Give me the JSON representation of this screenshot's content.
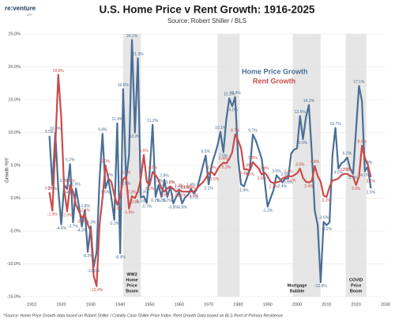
{
  "chart_data": {
    "type": "line",
    "logo": "re:venture",
    "logo_sub": "APP",
    "title": "U.S. Home Price v Rent Growth: 1916-2025",
    "subtitle": "Source: Robert Shiller / BLS",
    "ylabel": "Growth YoY",
    "footnote": "*Source: Home Price Growth data based on Robert Shiller / Cotality Case Shiller Price Index; Rent Growth Data based on BLS Rent of Primary Residence",
    "xlim": [
      1907,
      2030
    ],
    "xticks": [
      1910,
      1920,
      1930,
      1940,
      1950,
      1960,
      1970,
      1980,
      1990,
      2000,
      2010,
      2020,
      2030
    ],
    "ylim": [
      -15,
      25
    ],
    "yticks": [
      {
        "value": -15,
        "label": "-15.0%"
      },
      {
        "value": -10,
        "label": "-10.0%"
      },
      {
        "value": -5,
        "label": "-5.0%"
      },
      {
        "value": 0,
        "label": "0.0%"
      },
      {
        "value": 5,
        "label": "5.0%"
      },
      {
        "value": 10,
        "label": "10.0%"
      },
      {
        "value": 15,
        "label": "15.0%"
      },
      {
        "value": 20,
        "label": "20.0%"
      },
      {
        "value": 25,
        "label": "25.0%"
      }
    ],
    "grid": true,
    "shaded_periods": [
      {
        "start": 1941,
        "end": 1947,
        "label": [
          "WW2",
          "Home",
          "Price",
          "Boom"
        ]
      },
      {
        "start": 1973,
        "end": 1980.5
      },
      {
        "start": 1998.5,
        "end": 2008
      },
      {
        "start": 2016.5,
        "end": 2023.5,
        "label": [
          "COVID",
          "Price",
          "Boom"
        ]
      },
      {
        "start": 2000,
        "end": 2000,
        "label": [
          "Mortgage",
          "Bubble"
        ]
      }
    ],
    "x": [
      1916,
      1917,
      1918,
      1919,
      1920,
      1921,
      1922,
      1923,
      1924,
      1925,
      1926,
      1927,
      1928,
      1929,
      1930,
      1931,
      1932,
      1933,
      1934,
      1935,
      1936,
      1937,
      1938,
      1939,
      1940,
      1941,
      1942,
      1943,
      1944,
      1945,
      1946,
      1947,
      1948,
      1949,
      1950,
      1951,
      1952,
      1953,
      1954,
      1955,
      1956,
      1957,
      1958,
      1959,
      1960,
      1961,
      1962,
      1963,
      1964,
      1965,
      1966,
      1967,
      1968,
      1969,
      1970,
      1971,
      1972,
      1973,
      1974,
      1975,
      1976,
      1977,
      1978,
      1979,
      1980,
      1981,
      1982,
      1983,
      1984,
      1985,
      1986,
      1987,
      1988,
      1989,
      1990,
      1991,
      1992,
      1993,
      1994,
      1995,
      1996,
      1997,
      1998,
      1999,
      2000,
      2001,
      2002,
      2003,
      2004,
      2005,
      2006,
      2007,
      2008,
      2009,
      2010,
      2011,
      2012,
      2013,
      2014,
      2015,
      2016,
      2017,
      2018,
      2019,
      2020,
      2021,
      2022,
      2023,
      2024,
      2025
    ],
    "series": [
      {
        "name": "Home Price Growth",
        "color": "#4a6f95",
        "values": [
          9.5,
          2.0,
          10.0,
          1.4,
          -4.0,
          2.0,
          1.4,
          5.2,
          -3.7,
          1.5,
          -1.2,
          -4.3,
          -1.8,
          -8.2,
          -4.3,
          -10.5,
          -8.2,
          2.9,
          9.8,
          1.5,
          2.9,
          0.1,
          -3.3,
          11.4,
          -8.4,
          16.6,
          2.8,
          6.6,
          24.1,
          10.0,
          21.3,
          0.1,
          0.3,
          -0.7,
          4.0,
          11.2,
          0.2,
          2.0,
          0.2,
          2.8,
          0.2,
          1.8,
          -0.8,
          0.2,
          1.0,
          -0.8,
          0.1,
          0.5,
          1.4,
          0.7,
          1.4,
          3.0,
          4.8,
          6.5,
          2.1,
          5.0,
          6.5,
          8.0,
          10.1,
          7.0,
          12.0,
          15.2,
          14.0,
          15.4,
          6.0,
          2.1,
          1.8,
          3.1,
          4.5,
          9.7,
          8.8,
          7.4,
          6.0,
          2.6,
          -1.3,
          0.0,
          1.2,
          3.5,
          3.0,
          2.4,
          3.0,
          3.0,
          6.8,
          7.4,
          7.6,
          12.5,
          9.0,
          12.3,
          14.2,
          6.8,
          -1.9,
          -4.1,
          -12.8,
          -3.6,
          -4.1,
          -3.7,
          6.5,
          10.7,
          4.5,
          5.3,
          5.6,
          6.2,
          4.5,
          3.7,
          10.4,
          17.1,
          14.8,
          4.1,
          4.8,
          1.5
        ],
        "value_labels": [
          "9.5%",
          "2.0%",
          "10.0%",
          "1.4%",
          "-4.0%",
          "2.0%",
          "1.4%",
          "5.2%",
          "-3.7%",
          "1.5%",
          "-1.2%",
          "-4.3%",
          "-1.8%",
          "-8.2%",
          "-4.3%",
          "-10.5%",
          "-8.2%",
          "2.9%",
          "9.8%",
          "1.5%",
          "2.9%",
          "0.1%",
          "-3.3%",
          "11.4%",
          "-8.4%",
          "16.6%",
          "2.8%",
          "6.6%",
          "24.1%",
          "10.0%",
          "21.3%",
          "0.1%",
          "0.3%",
          "-0.7%",
          "4.0%",
          "11.2%",
          "0.2%",
          "2.0%",
          "0.2%",
          "2.8%",
          "0.2%",
          "1.8%",
          "-0.8%",
          "0.2%",
          "1.0%",
          "-0.8%",
          "0.1%",
          "0.5%",
          "1.4%",
          "0.7%",
          "1.4%",
          "3.0%",
          "4.8%",
          "6.5%",
          "2.1%",
          "5.0%",
          "6.5%",
          "8.0%",
          "10.1%",
          "7.0%",
          "12.0%",
          "15.2%",
          "14.0%",
          "15.4%",
          "6.0%",
          "2.1%",
          "1.8%",
          "3.1%",
          "4.5%",
          "9.7%",
          "8.8%",
          "7.4%",
          "6.0%",
          "2.6%",
          "-1.3%",
          "0.0%",
          "1.2%",
          "3.5%",
          "3.0%",
          "2.4%",
          "3.0%",
          "3.0%",
          "6.8%",
          "7.4%",
          "7.6%",
          "12.5%",
          "9.0%",
          "12.3%",
          "14.2%",
          "6.8%",
          "-1.9%",
          "-4.1%",
          "-12.8%",
          "-3.6%",
          "-4.1%",
          "-3.7%",
          "6.5%",
          "10.7%",
          "4.5%",
          "5.3%",
          "5.6%",
          "6.2%",
          "4.5%",
          "3.7%",
          "10.4%",
          "17.1%",
          "14.8%",
          "4.1%",
          "4.8%",
          "1.5%"
        ]
      },
      {
        "name": "Rent Growth",
        "color": "#cc4b4b",
        "values": [
          0.9,
          -1.9,
          8.0,
          18.8,
          12.3,
          1.4,
          -2.0,
          2.0,
          1.0,
          -1.0,
          -2.0,
          -3.0,
          -2.5,
          -4.0,
          -5.0,
          -11.8,
          -13.4,
          -4.0,
          0.0,
          5.0,
          3.0,
          2.5,
          0.5,
          -1.0,
          0.3,
          2.9,
          3.3,
          -1.6,
          0.3,
          0.0,
          1.0,
          3.0,
          6.6,
          2.5,
          2.0,
          4.0,
          3.5,
          2.8,
          1.5,
          1.0,
          1.5,
          1.8,
          1.4,
          1.0,
          1.3,
          1.0,
          1.0,
          1.0,
          1.0,
          1.0,
          1.5,
          2.0,
          2.4,
          3.0,
          3.8,
          4.0,
          3.5,
          4.4,
          5.0,
          5.4,
          5.3,
          6.0,
          7.0,
          9.7,
          8.8,
          7.6,
          4.4,
          4.4,
          4.2,
          5.5,
          5.0,
          4.5,
          3.6,
          3.9,
          3.3,
          2.5,
          2.3,
          2.4,
          2.5,
          3.0,
          3.2,
          3.4,
          3.3,
          3.5,
          3.8,
          4.5,
          3.1,
          2.5,
          2.4,
          2.6,
          4.9,
          3.4,
          2.5,
          0.4,
          0.2,
          1.7,
          2.7,
          2.8,
          3.0,
          3.5,
          3.7,
          3.7,
          3.4,
          3.3,
          2.0,
          3.3,
          8.0,
          6.1,
          5.1,
          3.2
        ],
        "value_labels": [
          "0.9%",
          "-1.9%",
          "8.0%",
          "18.8%",
          "12.3%",
          "1.4%",
          "-2.0%",
          "2.0%",
          "1.0%",
          "-1.0%",
          "-2.0%",
          "-3.0%",
          "-2.5%",
          "-4.0%",
          "-5.0%",
          "-11.8%",
          "-13.4%",
          "-4.0%",
          "0.0%",
          "5.0%",
          "3.0%",
          "2.5%",
          "0.5%",
          "-1.0%",
          "0.3%",
          "2.9%",
          "3.3%",
          "-1.6%",
          "0.3%",
          "0.0%",
          "1.0%",
          "3.0%",
          "6.6%",
          "2.5%",
          "2.0%",
          "4.0%",
          "3.5%",
          "2.8%",
          "1.5%",
          "1.0%",
          "1.5%",
          "1.8%",
          "1.4%",
          "1.0%",
          "1.3%",
          "1.0%",
          "1.0%",
          "1.0%",
          "1.0%",
          "1.0%",
          "1.5%",
          "2.0%",
          "2.4%",
          "3.0%",
          "3.8%",
          "4.0%",
          "3.5%",
          "4.4%",
          "5.0%",
          "5.4%",
          "5.3%",
          "6.0%",
          "7.0%",
          "9.7%",
          "8.8%",
          "7.6%",
          "4.4%",
          "4.4%",
          "4.2%",
          "5.5%",
          "5.0%",
          "4.5%",
          "3.6%",
          "3.9%",
          "3.3%",
          "2.5%",
          "2.3%",
          "2.4%",
          "2.5%",
          "3.0%",
          "3.2%",
          "3.4%",
          "3.3%",
          "3.5%",
          "3.8%",
          "4.5%",
          "3.1%",
          "2.5%",
          "2.4%",
          "2.6%",
          "4.9%",
          "3.4%",
          "2.5%",
          "0.4%",
          "0.2%",
          "1.7%",
          "2.7%",
          "2.8%",
          "3.0%",
          "3.5%",
          "3.7%",
          "3.7%",
          "3.4%",
          "3.3%",
          "2.0%",
          "3.3%",
          "8.0%",
          "6.1%",
          "5.1%",
          "3.2%"
        ]
      }
    ]
  }
}
